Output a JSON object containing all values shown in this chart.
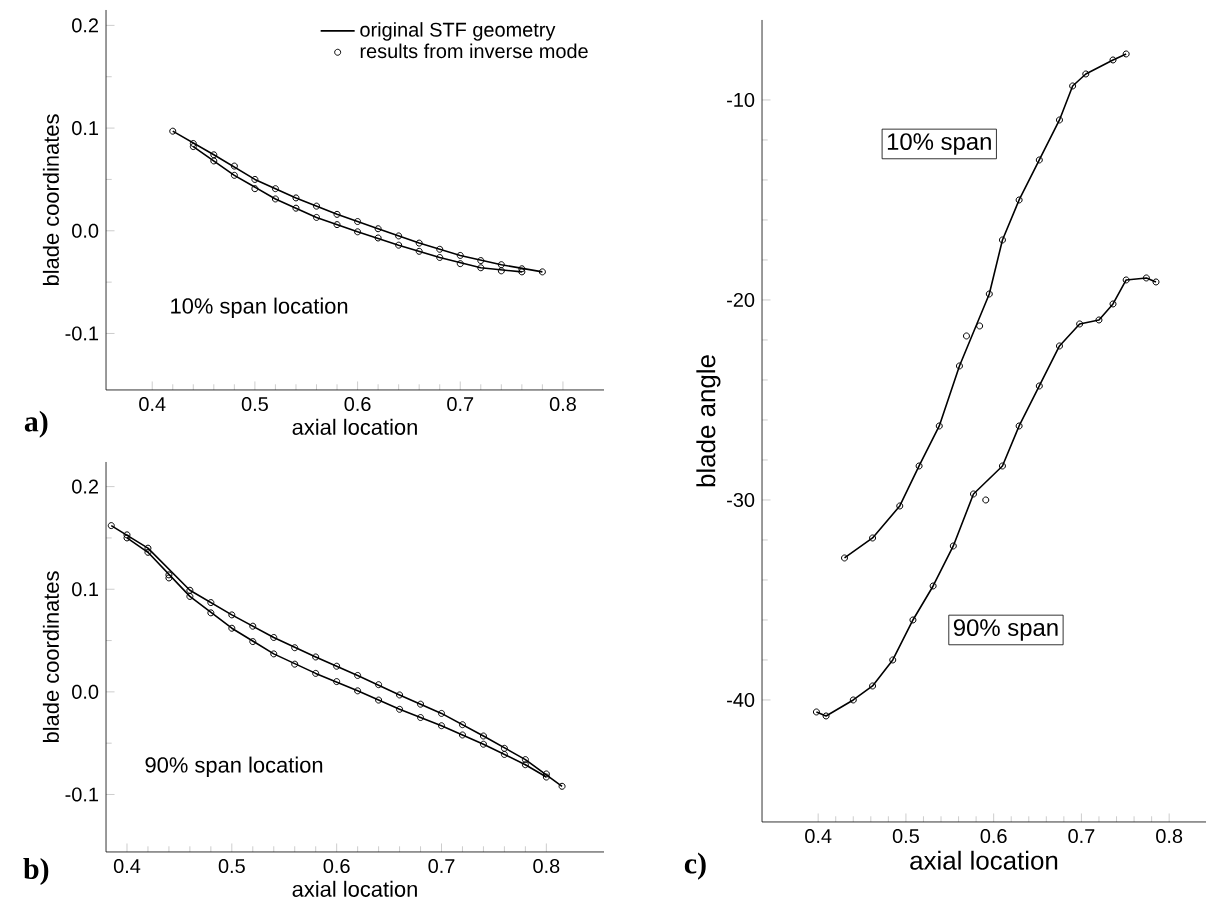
{
  "chart_data": [
    {
      "type": "line",
      "xlabel": "axial location",
      "ylabel": "blade coordinates",
      "xlim": [
        0.355,
        0.84
      ],
      "ylim": [
        -0.155,
        0.215
      ],
      "xticks": [
        0.4,
        0.5,
        0.6,
        0.7,
        0.8
      ],
      "yticks": [
        -0.1,
        {
          "value": 0,
          "label": "0.0"
        },
        0.1,
        0.2
      ],
      "legend": "top right",
      "annotations": [
        "10% span location",
        "a)"
      ],
      "series": [
        {
          "type": "line",
          "name": "original STF geometry",
          "color": "#000000",
          "x": [
            0.42,
            0.46,
            0.5,
            0.54,
            0.58,
            0.62,
            0.66,
            0.7,
            0.74,
            0.78
          ],
          "values": [
            0.097,
            0.074,
            0.05,
            0.032,
            0.016,
            0.002,
            -0.012,
            -0.024,
            -0.033,
            -0.04
          ]
        },
        {
          "type": "line",
          "color": "#000000",
          "x": [
            0.44,
            0.48,
            0.52,
            0.56,
            0.6,
            0.64,
            0.68,
            0.72,
            0.76
          ],
          "values": [
            0.082,
            0.054,
            0.031,
            0.013,
            -0.001,
            -0.014,
            -0.026,
            -0.036,
            -0.04
          ]
        },
        {
          "type": "scatter",
          "name": "results from inverse mode",
          "color": "#000000",
          "marker": "circle",
          "x": [
            0.42,
            0.44,
            0.46,
            0.48,
            0.5,
            0.52,
            0.54,
            0.56,
            0.58,
            0.6,
            0.62,
            0.64,
            0.66,
            0.68,
            0.7,
            0.72,
            0.74,
            0.76,
            0.78,
            0.76,
            0.74,
            0.72,
            0.7,
            0.68,
            0.66,
            0.64,
            0.62,
            0.6,
            0.58,
            0.56,
            0.54,
            0.52,
            0.5,
            0.48,
            0.46,
            0.44
          ],
          "values": [
            0.097,
            0.085,
            0.074,
            0.063,
            0.05,
            0.041,
            0.032,
            0.024,
            0.016,
            0.009,
            0.002,
            -0.005,
            -0.012,
            -0.018,
            -0.024,
            -0.029,
            -0.033,
            -0.037,
            -0.04,
            -0.04,
            -0.039,
            -0.036,
            -0.032,
            -0.026,
            -0.02,
            -0.014,
            -0.007,
            -0.001,
            0.006,
            0.013,
            0.022,
            0.031,
            0.041,
            0.054,
            0.068,
            0.082
          ]
        }
      ]
    },
    {
      "type": "line",
      "xlabel": "axial location",
      "ylabel": "blade coordinates",
      "xlim": [
        0.38,
        0.855
      ],
      "ylim": [
        -0.156,
        0.224
      ],
      "xticks": [
        0.4,
        0.5,
        0.6,
        0.7,
        0.8
      ],
      "yticks": [
        -0.1,
        {
          "value": 0,
          "label": "0.0"
        },
        0.1,
        0.2
      ],
      "annotations": [
        "90% span location",
        "b)"
      ],
      "series": [
        {
          "type": "line",
          "color": "#000000",
          "x": [
            0.385,
            0.42,
            0.46,
            0.5,
            0.54,
            0.58,
            0.62,
            0.66,
            0.7,
            0.74,
            0.78,
            0.815
          ],
          "values": [
            0.162,
            0.14,
            0.099,
            0.075,
            0.053,
            0.034,
            0.016,
            -0.003,
            -0.021,
            -0.043,
            -0.066,
            -0.092
          ]
        },
        {
          "type": "line",
          "color": "#000000",
          "x": [
            0.4,
            0.42,
            0.46,
            0.5,
            0.54,
            0.58,
            0.62,
            0.66,
            0.7,
            0.74,
            0.78,
            0.8
          ],
          "values": [
            0.15,
            0.136,
            0.093,
            0.062,
            0.037,
            0.018,
            0.001,
            -0.017,
            -0.033,
            -0.051,
            -0.071,
            -0.083
          ]
        },
        {
          "type": "scatter",
          "color": "#000000",
          "marker": "circle",
          "x": [
            0.385,
            0.4,
            0.42,
            0.44,
            0.46,
            0.48,
            0.5,
            0.52,
            0.54,
            0.56,
            0.58,
            0.6,
            0.62,
            0.64,
            0.66,
            0.68,
            0.7,
            0.72,
            0.74,
            0.76,
            0.78,
            0.8,
            0.815,
            0.8,
            0.78,
            0.76,
            0.74,
            0.72,
            0.7,
            0.68,
            0.66,
            0.64,
            0.62,
            0.6,
            0.58,
            0.56,
            0.54,
            0.52,
            0.5,
            0.48,
            0.46,
            0.44,
            0.42,
            0.4
          ],
          "values": [
            0.162,
            0.153,
            0.14,
            0.114,
            0.099,
            0.087,
            0.075,
            0.064,
            0.053,
            0.043,
            0.034,
            0.025,
            0.016,
            0.007,
            -0.003,
            -0.012,
            -0.021,
            -0.032,
            -0.043,
            -0.055,
            -0.066,
            -0.08,
            -0.092,
            -0.083,
            -0.071,
            -0.061,
            -0.051,
            -0.042,
            -0.033,
            -0.025,
            -0.017,
            -0.008,
            0.001,
            0.01,
            0.018,
            0.027,
            0.037,
            0.049,
            0.062,
            0.077,
            0.093,
            0.111,
            0.136,
            0.15
          ]
        }
      ]
    },
    {
      "type": "line",
      "xlabel": "axial location",
      "ylabel": "blade angle",
      "xlim": [
        0.336,
        0.842
      ],
      "ylim": [
        -46.1,
        -6
      ],
      "xticks": [
        0.4,
        0.5,
        0.6,
        0.7,
        0.8
      ],
      "yticks": [
        -40,
        -30,
        -20,
        -10
      ],
      "annotations": [
        "10% span",
        "90% span",
        "c)"
      ],
      "series": [
        {
          "type": "line",
          "color": "#000000",
          "x": [
            0.43,
            0.462,
            0.493,
            0.515,
            0.538,
            0.561,
            0.595,
            0.61,
            0.629,
            0.652,
            0.675,
            0.69,
            0.705,
            0.736,
            0.751
          ],
          "values": [
            -32.9,
            -31.9,
            -30.3,
            -28.3,
            -26.3,
            -23.3,
            -19.7,
            -17.0,
            -15.0,
            -13.0,
            -11.0,
            -9.3,
            -8.7,
            -8.0,
            -7.7
          ]
        },
        {
          "type": "scatter",
          "color": "#000000",
          "marker": "circle",
          "x": [
            0.43,
            0.462,
            0.493,
            0.515,
            0.538,
            0.561,
            0.569,
            0.584,
            0.595,
            0.61,
            0.629,
            0.652,
            0.675,
            0.69,
            0.705,
            0.736,
            0.751
          ],
          "values": [
            -32.9,
            -31.9,
            -30.3,
            -28.3,
            -26.3,
            -23.3,
            -21.8,
            -21.3,
            -19.7,
            -17.0,
            -15.0,
            -13.0,
            -11.0,
            -9.3,
            -8.7,
            -8.0,
            -7.7
          ]
        },
        {
          "type": "line",
          "color": "#000000",
          "x": [
            0.398,
            0.409,
            0.44,
            0.462,
            0.485,
            0.508,
            0.531,
            0.554,
            0.577,
            0.61,
            0.629,
            0.652,
            0.675,
            0.698,
            0.72,
            0.736,
            0.751,
            0.774,
            0.785
          ],
          "values": [
            -40.6,
            -40.8,
            -40.0,
            -39.3,
            -38.0,
            -36.0,
            -34.3,
            -32.3,
            -29.7,
            -28.3,
            -26.3,
            -24.3,
            -22.3,
            -21.2,
            -21.0,
            -20.2,
            -19.0,
            -18.9,
            -19.1
          ]
        },
        {
          "type": "scatter",
          "color": "#000000",
          "marker": "circle",
          "x": [
            0.398,
            0.409,
            0.44,
            0.462,
            0.485,
            0.508,
            0.531,
            0.554,
            0.577,
            0.591,
            0.61,
            0.629,
            0.652,
            0.675,
            0.698,
            0.72,
            0.736,
            0.751,
            0.774,
            0.785
          ],
          "values": [
            -40.6,
            -40.8,
            -40.0,
            -39.3,
            -38.0,
            -36.0,
            -34.3,
            -32.3,
            -29.7,
            -30.0,
            -28.3,
            -26.3,
            -24.3,
            -22.3,
            -21.2,
            -21.0,
            -20.2,
            -19.0,
            -18.9,
            -19.1
          ]
        }
      ]
    }
  ]
}
